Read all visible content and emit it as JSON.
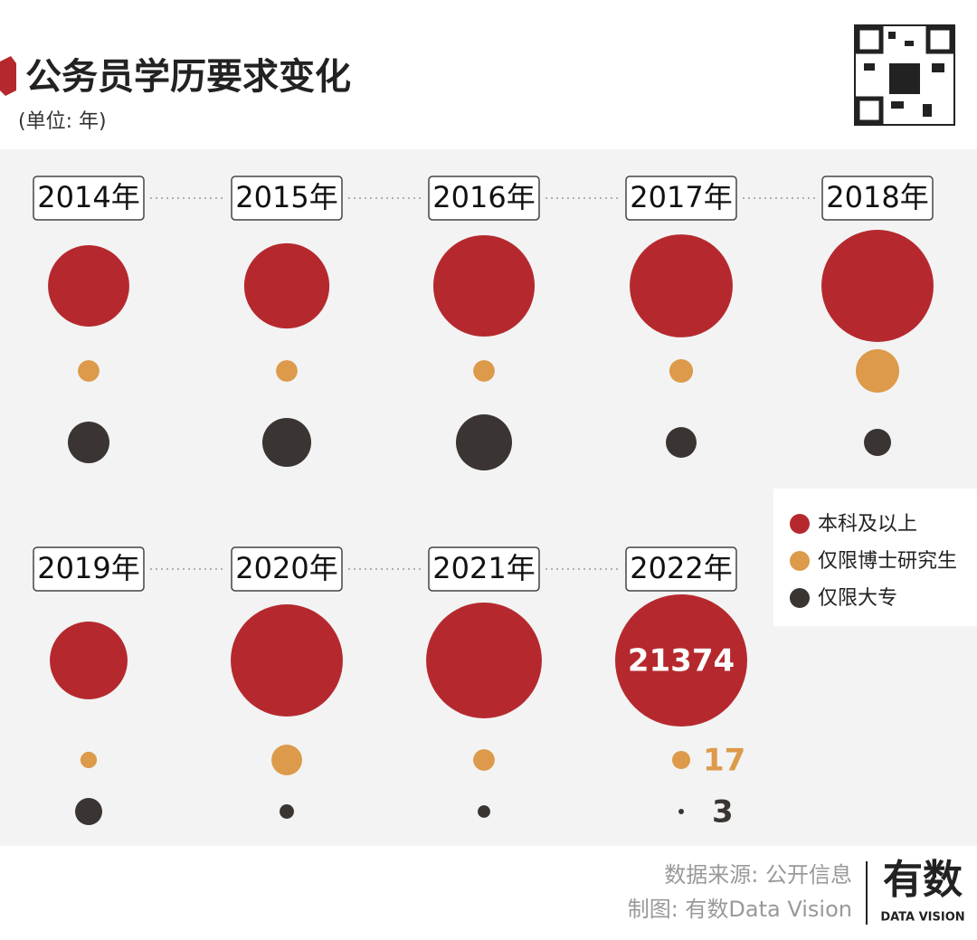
{
  "chart_data": {
    "type": "bubble",
    "title": "公务员学历要求变化",
    "subtitle": "(单位: 年)",
    "categories": [
      "2014年",
      "2015年",
      "2016年",
      "2017年",
      "2018年",
      "2019年",
      "2020年",
      "2021年",
      "2022年"
    ],
    "series": [
      {
        "name": "本科及以上",
        "color": "#b5292e",
        "values": [
          8100,
          8900,
          12600,
          13000,
          15400,
          7400,
          15400,
          16400,
          21374
        ]
      },
      {
        "name": "仅限博士研究生",
        "color": "#dc9a4a",
        "values": [
          24,
          24,
          24,
          29,
          98,
          14,
          49,
          24,
          17
        ]
      },
      {
        "name": "仅限大专",
        "color": "#3a3533",
        "values": [
          176,
          243,
          320,
          96,
          75,
          75,
          21,
          16,
          3
        ]
      }
    ],
    "legend": "right"
  },
  "footer": {
    "source": "数据来源: 公开信息",
    "credit": "制图: 有数Data Vision",
    "logo": "有数",
    "logo_sub": "DATA VISION"
  }
}
